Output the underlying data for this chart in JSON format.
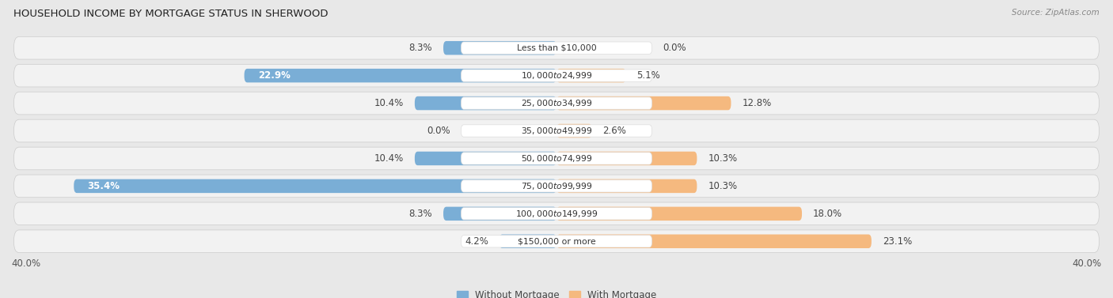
{
  "title": "HOUSEHOLD INCOME BY MORTGAGE STATUS IN SHERWOOD",
  "source": "Source: ZipAtlas.com",
  "categories": [
    "Less than $10,000",
    "$10,000 to $24,999",
    "$25,000 to $34,999",
    "$35,000 to $49,999",
    "$50,000 to $74,999",
    "$75,000 to $99,999",
    "$100,000 to $149,999",
    "$150,000 or more"
  ],
  "without_mortgage": [
    8.3,
    22.9,
    10.4,
    0.0,
    10.4,
    35.4,
    8.3,
    4.2
  ],
  "with_mortgage": [
    0.0,
    5.1,
    12.8,
    2.6,
    10.3,
    10.3,
    18.0,
    23.1
  ],
  "color_without": "#7aaed6",
  "color_with": "#f5b97f",
  "axis_limit": 40.0,
  "bg_color": "#e8e8e8",
  "row_bg": "#f2f2f2",
  "label_bg": "#ffffff",
  "legend_label_without": "Without Mortgage",
  "legend_label_with": "With Mortgage",
  "x_tick_left": "40.0%",
  "x_tick_right": "40.0%"
}
